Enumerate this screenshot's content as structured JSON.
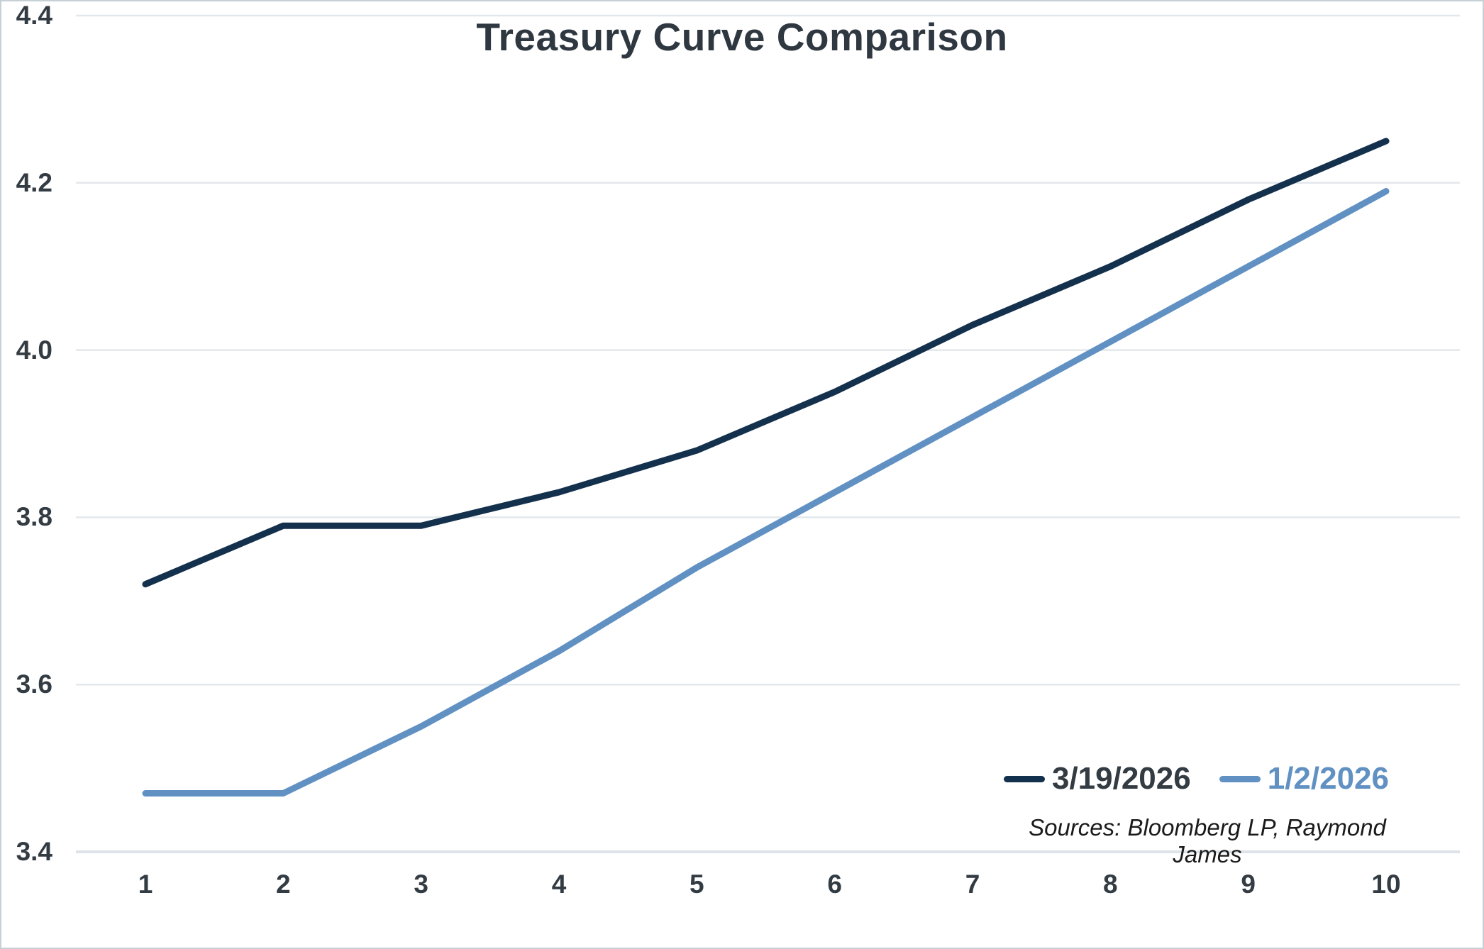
{
  "chart_data": {
    "type": "line",
    "title": "Treasury Curve Comparison",
    "categories": [
      1,
      2,
      3,
      4,
      5,
      6,
      7,
      8,
      9,
      10
    ],
    "series": [
      {
        "name": "3/19/2026",
        "color": "#13304d",
        "values": [
          3.72,
          3.79,
          3.79,
          3.83,
          3.88,
          3.95,
          4.03,
          4.1,
          4.18,
          4.25
        ]
      },
      {
        "name": "1/2/2026",
        "color": "#6191c3",
        "values": [
          3.47,
          3.47,
          3.55,
          3.64,
          3.74,
          3.83,
          3.92,
          4.01,
          4.1,
          4.19
        ]
      }
    ],
    "xlabel": "",
    "ylabel": "",
    "ylim": [
      3.4,
      4.4
    ],
    "yticks": [
      3.4,
      3.6,
      3.8,
      4.0,
      4.2,
      4.4
    ],
    "x_range": [
      1,
      10
    ],
    "grid": true,
    "legend_position": "inside-bottom-right",
    "sources_note": "Sources: Bloomberg LP, Raymond James",
    "styles": {
      "grid_color": "#e3e8ec",
      "axis_line_color": "#dde3e8",
      "text_color": "#333b43",
      "title_color": "#2f3841",
      "sources_color": "#1a1a1a",
      "border_color": "#c6d1d7",
      "background": "#ffffff",
      "line_width": 9
    }
  }
}
